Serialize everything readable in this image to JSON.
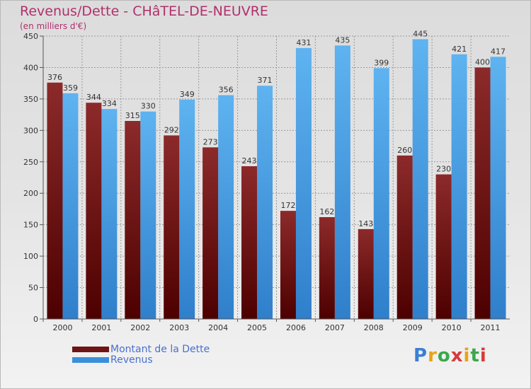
{
  "title": "Revenus/Dette - CHâTEL-DE-NEUVRE",
  "subtitle": "(en milliers d'€)",
  "colors": {
    "title": "#b0306c",
    "dette": "#6e1414",
    "revenus": "#3a8fdb",
    "legend_text": "#4a6fd0"
  },
  "legend": [
    {
      "label": "Montant de la Dette",
      "color": "#6e1414"
    },
    {
      "label": "Revenus",
      "color": "#3a8fdb"
    }
  ],
  "logo": {
    "text": "Proxiti"
  },
  "chart_data": {
    "type": "bar",
    "title": "Revenus/Dette - CHâTEL-DE-NEUVRE",
    "subtitle": "(en milliers d'€)",
    "xlabel": "",
    "ylabel": "",
    "ylim": [
      0,
      450
    ],
    "yticks": [
      0,
      50,
      100,
      150,
      200,
      250,
      300,
      350,
      400,
      450
    ],
    "grid": true,
    "legend_position": "bottom-left",
    "categories": [
      "2000",
      "2001",
      "2002",
      "2003",
      "2004",
      "2005",
      "2006",
      "2007",
      "2008",
      "2009",
      "2010",
      "2011"
    ],
    "series": [
      {
        "name": "Montant de la Dette",
        "values": [
          376,
          344,
          315,
          292,
          273,
          243,
          172,
          162,
          143,
          260,
          230,
          400
        ]
      },
      {
        "name": "Revenus",
        "values": [
          359,
          334,
          330,
          349,
          356,
          371,
          431,
          435,
          399,
          445,
          421,
          417
        ]
      }
    ]
  }
}
